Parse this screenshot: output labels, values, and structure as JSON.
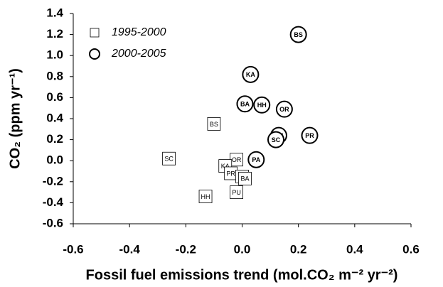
{
  "chart_data": {
    "type": "scatter",
    "xlabel": "Fossil fuel emissions trend (mol.CO₂ m⁻² yr⁻²)",
    "ylabel": "CO₂ (ppm yr⁻¹)",
    "xlim": [
      -0.6,
      0.6
    ],
    "ylim": [
      -0.6,
      1.4
    ],
    "xticks": [
      -0.6,
      -0.4,
      -0.2,
      {
        "value": 0,
        "label": "0.0"
      },
      0.2,
      0.4,
      0.6
    ],
    "yticks": [
      -0.6,
      -0.4,
      -0.2,
      {
        "value": 0,
        "label": "0.0"
      },
      0.2,
      0.4,
      0.6,
      0.8,
      {
        "value": 1,
        "label": "1.0"
      },
      1.2,
      1.4
    ],
    "legend_position": "upper left",
    "series": [
      {
        "name": "1995-2000",
        "marker": "square",
        "color": "#000000",
        "labels": [
          "BS",
          "SC",
          "OR",
          "KA",
          "PR",
          "PA",
          "BA",
          "PU",
          "HH"
        ],
        "x": [
          -0.1,
          -0.26,
          -0.02,
          -0.06,
          -0.04,
          0.0,
          0.01,
          -0.02,
          -0.13
        ],
        "values": [
          0.35,
          0.02,
          0.01,
          -0.05,
          -0.12,
          -0.15,
          -0.17,
          -0.3,
          -0.34
        ]
      },
      {
        "name": "2000-2005",
        "marker": "circle",
        "color": "#000000",
        "labels": [
          "BS",
          "KA",
          "BA",
          "HH",
          "OR",
          "PU",
          "PR",
          "SC",
          "PA"
        ],
        "x": [
          0.2,
          0.03,
          0.01,
          0.07,
          0.15,
          0.13,
          0.24,
          0.12,
          0.05
        ],
        "values": [
          1.2,
          0.82,
          0.54,
          0.53,
          0.49,
          0.24,
          0.24,
          0.2,
          0.01
        ]
      }
    ]
  }
}
